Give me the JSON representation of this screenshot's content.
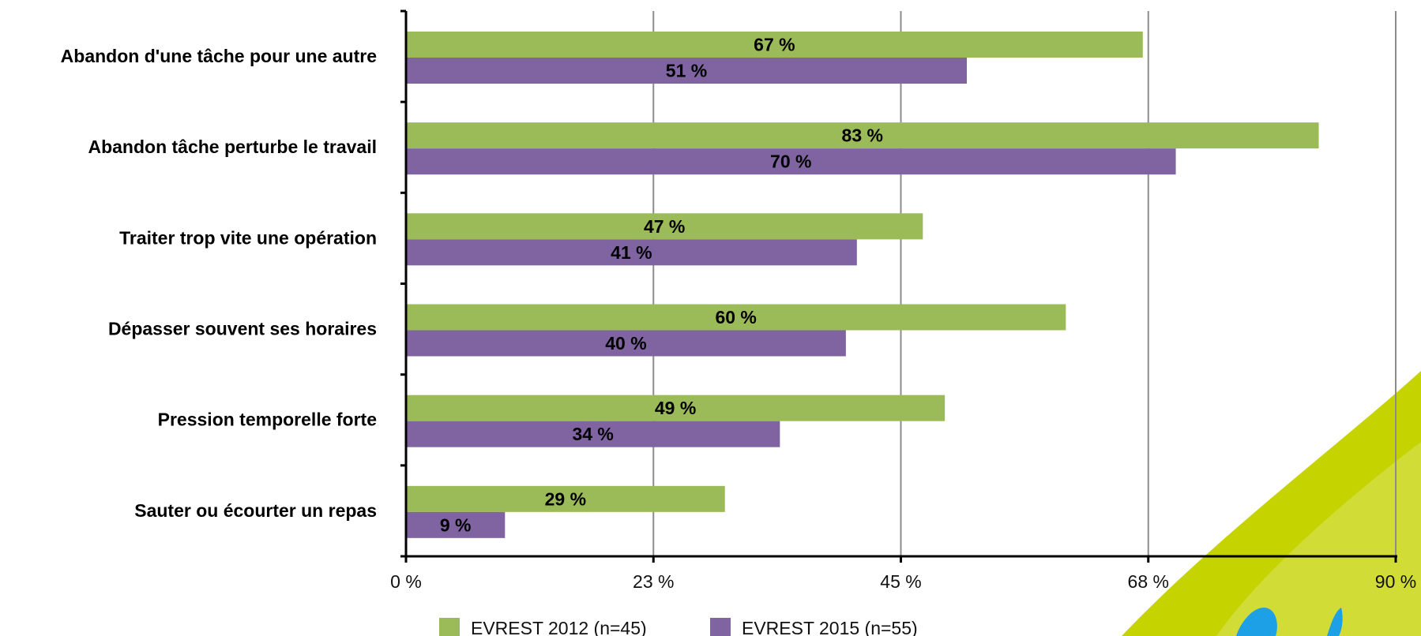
{
  "colors": {
    "series_2012": "#9bbb59",
    "series_2015": "#8064a2",
    "gridline": "#8c8c8c",
    "axis": "#000000",
    "decor_green": "#c5d300",
    "decor_blue": "#1ea0e6"
  },
  "chart_data": {
    "type": "bar",
    "orientation": "horizontal",
    "categories": [
      "Abandon d'une tâche pour une autre",
      "Abandon tâche perturbe le travail",
      "Traiter trop vite une opération",
      "Dépasser souvent ses horaires",
      "Pression temporelle forte",
      "Sauter ou écourter un repas"
    ],
    "series": [
      {
        "name": "EVREST 2012 (n=45)",
        "values": [
          67,
          83,
          47,
          60,
          49,
          29
        ],
        "labels": [
          "67 %",
          "83 %",
          "47 %",
          "60 %",
          "49 %",
          "29 %"
        ]
      },
      {
        "name": "EVREST 2015 (n=55)",
        "values": [
          51,
          70,
          41,
          40,
          34,
          9
        ],
        "labels": [
          "51 %",
          "70 %",
          "41 %",
          "40 %",
          "34 %",
          "9 %"
        ]
      }
    ],
    "xlim": [
      0,
      90
    ],
    "xticks": [
      0,
      22.5,
      45,
      67.5,
      90
    ],
    "xtick_labels": [
      "0 %",
      "23 %",
      "45 %",
      "68 %",
      "90 %"
    ],
    "grid": "vertical",
    "legend_position": "bottom",
    "title": "",
    "xlabel": "",
    "ylabel": ""
  }
}
